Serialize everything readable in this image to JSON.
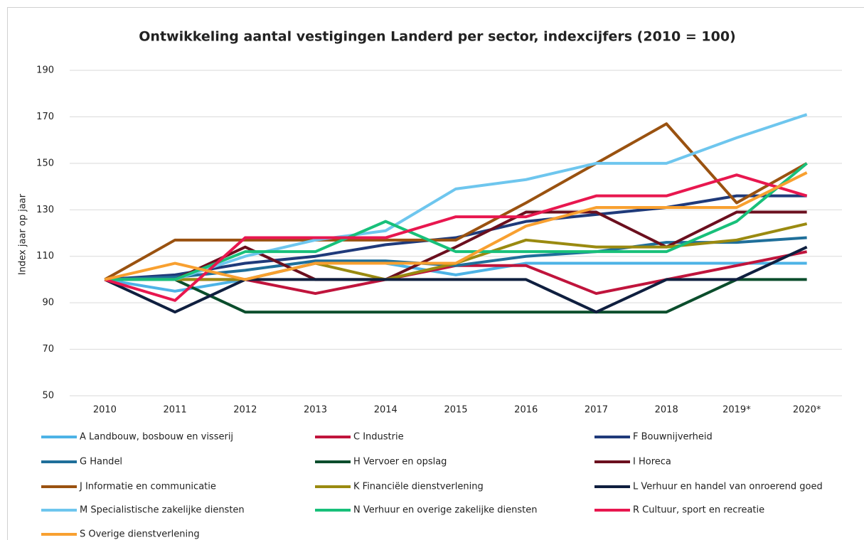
{
  "chart_data": {
    "type": "line",
    "title": "Ontwikkeling aantal vestigingen Landerd per sector, indexcijfers (2010 = 100)",
    "ylabel": "Index jaar op jaar",
    "categories": [
      "2010",
      "2011",
      "2012",
      "2013",
      "2014",
      "2015",
      "2016",
      "2017",
      "2018",
      "2019*",
      "2020*"
    ],
    "ylim": [
      50,
      190
    ],
    "yticks": [
      50,
      70,
      90,
      110,
      130,
      150,
      170,
      190
    ],
    "grid": true,
    "legend": "bottom",
    "series": [
      {
        "name": "A Landbouw, bosbouw en visserij",
        "color": "#4db3e6",
        "values": [
          100,
          95,
          100,
          107,
          107,
          102,
          107,
          107,
          107,
          107,
          107
        ]
      },
      {
        "name": "C Industrie",
        "color": "#c0143c",
        "values": [
          100,
          100,
          100,
          94,
          100,
          106,
          106,
          94,
          100,
          106,
          112
        ]
      },
      {
        "name": "F Bouwnijverheid",
        "color": "#1f3a7a",
        "values": [
          100,
          102,
          107,
          110,
          115,
          118,
          125,
          128,
          131,
          136,
          136
        ]
      },
      {
        "name": "G Handel",
        "color": "#1f6f9a",
        "values": [
          100,
          101,
          104,
          108,
          108,
          106,
          110,
          112,
          116,
          116,
          118
        ]
      },
      {
        "name": "H Vervoer en opslag",
        "color": "#0b4d2c",
        "values": [
          100,
          100,
          86,
          86,
          86,
          86,
          86,
          86,
          86,
          100,
          100
        ]
      },
      {
        "name": "I Horeca",
        "color": "#6b0f1e",
        "values": [
          100,
          100,
          114,
          100,
          100,
          114,
          129,
          129,
          114,
          129,
          129
        ]
      },
      {
        "name": "J Informatie en communicatie",
        "color": "#9a5210",
        "values": [
          100,
          117,
          117,
          117,
          117,
          117,
          133,
          150,
          167,
          133,
          150
        ]
      },
      {
        "name": "K Financiële dienstverlening",
        "color": "#9a8a10",
        "values": [
          100,
          100,
          100,
          107,
          100,
          107,
          117,
          114,
          114,
          117,
          124
        ]
      },
      {
        "name": "L Verhuur en handel van onroerend goed",
        "color": "#0f1f3f",
        "values": [
          100,
          86,
          100,
          100,
          100,
          100,
          100,
          86,
          100,
          100,
          114
        ]
      },
      {
        "name": "M Specialistische zakelijke diensten",
        "color": "#6ec6ee",
        "values": [
          100,
          100,
          110,
          117,
          121,
          139,
          143,
          150,
          150,
          161,
          171
        ]
      },
      {
        "name": "N Verhuur en overige zakelijke diensten",
        "color": "#18c07a",
        "values": [
          100,
          100,
          112,
          112,
          125,
          112,
          112,
          112,
          112,
          125,
          150
        ]
      },
      {
        "name": "R Cultuur, sport en recreatie",
        "color": "#e8174f",
        "values": [
          100,
          91,
          118,
          118,
          118,
          127,
          127,
          136,
          136,
          145,
          136
        ]
      },
      {
        "name": "S Overige dienstverlening",
        "color": "#f8a030",
        "values": [
          100,
          107,
          100,
          107,
          107,
          107,
          123,
          131,
          131,
          131,
          146
        ]
      }
    ]
  }
}
